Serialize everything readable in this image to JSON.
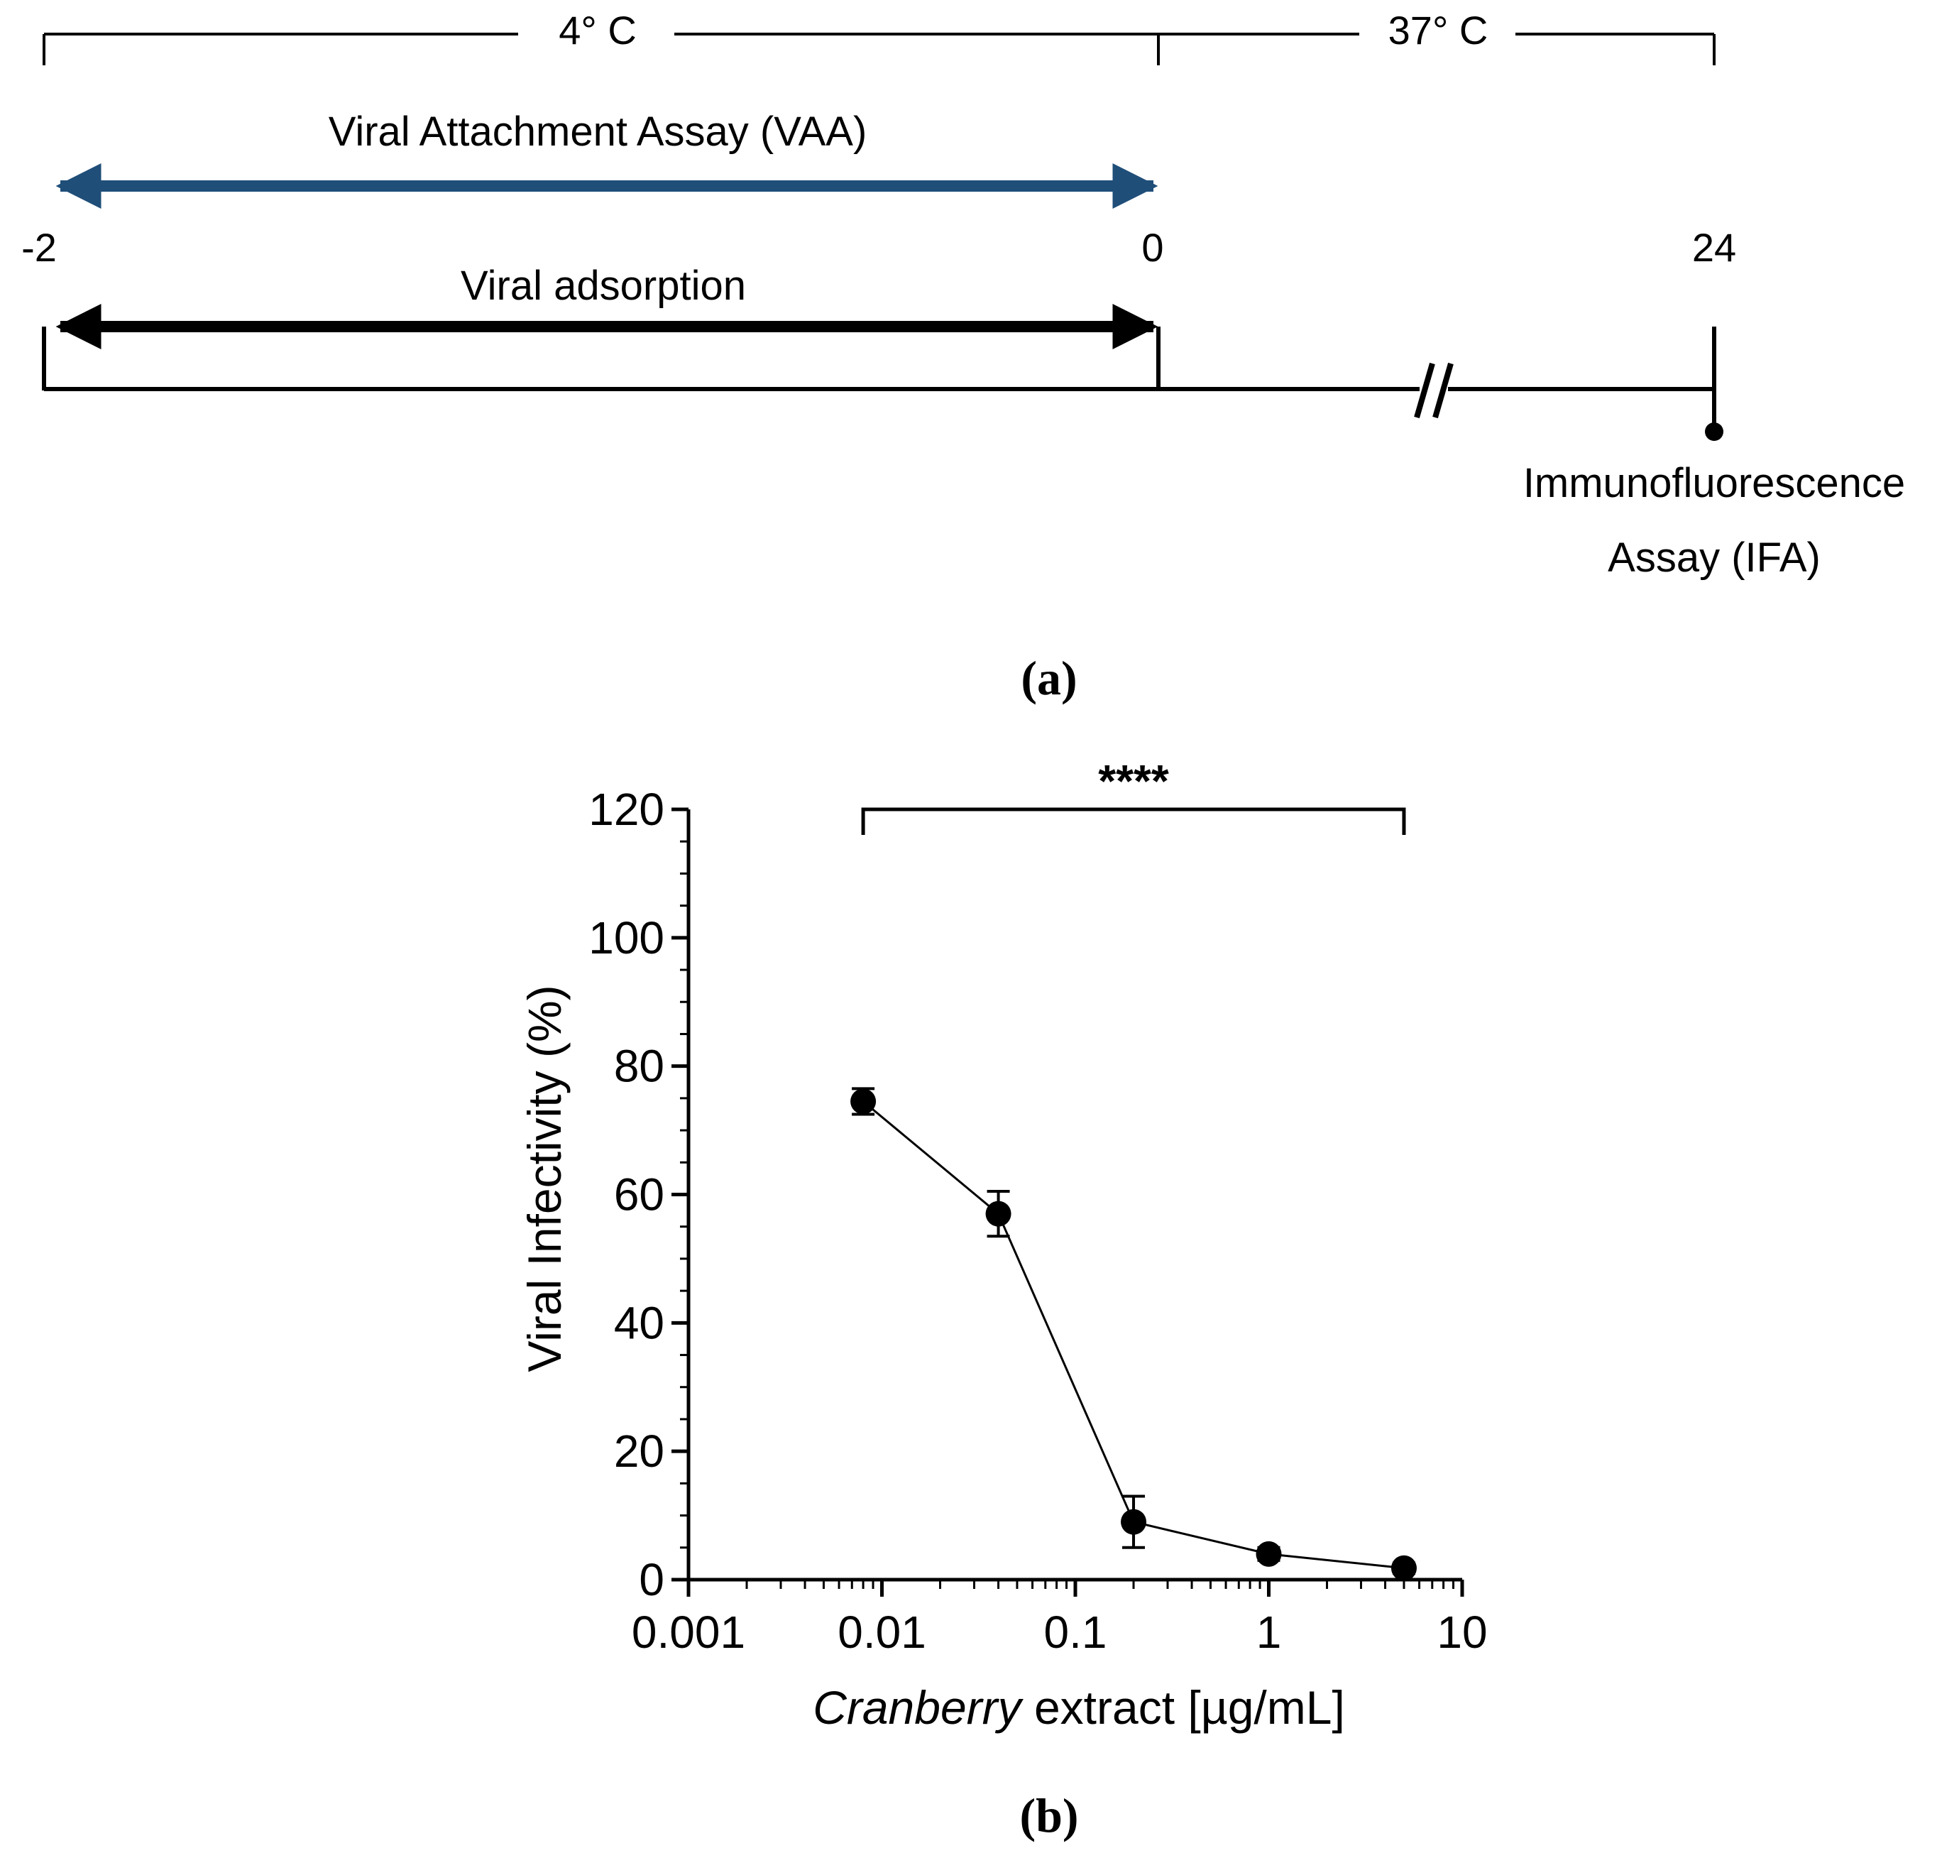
{
  "panel_a": {
    "temp_cold": "4° C",
    "temp_warm": "37° C",
    "vaa_label": "Viral Attachment Assay (VAA)",
    "time_start": "-2",
    "time_zero": "0",
    "time_end": "24",
    "adsorption_label": "Viral adsorption",
    "ifa_line1": "Immunofluorescence",
    "ifa_line2": "Assay (IFA)",
    "caption": "(a)",
    "colors": {
      "vaa_arrow": "#1f4e79",
      "adsorption_arrow": "#000000"
    }
  },
  "panel_b": {
    "caption": "(b)",
    "significance": "****",
    "xlabel_italic": "Cranberry",
    "xlabel_rest": " extract [µg/mL]"
  },
  "chart_data": {
    "type": "scatter",
    "title": "",
    "xlabel": "Cranberry extract [µg/mL]",
    "ylabel": "Viral Infectivity (%)",
    "xscale": "log",
    "xlim": [
      0.001,
      10
    ],
    "ylim": [
      0,
      120
    ],
    "x_ticks": [
      0.001,
      0.01,
      0.1,
      1,
      10
    ],
    "x_tick_labels": [
      "0.001",
      "0.01",
      "0.1",
      "1",
      "10"
    ],
    "y_ticks": [
      0,
      20,
      40,
      60,
      80,
      100,
      120
    ],
    "y_tick_labels": [
      "0",
      "20",
      "40",
      "60",
      "80",
      "100",
      "120"
    ],
    "series": [
      {
        "name": "Cranberry extract",
        "x": [
          0.008,
          0.04,
          0.2,
          1,
          5
        ],
        "y": [
          74.5,
          57,
          9,
          4,
          1.8
        ],
        "err": [
          2,
          3.5,
          4,
          1,
          0.8
        ],
        "connected": true
      }
    ],
    "significance_bracket": {
      "from": 0.008,
      "to": 5,
      "label": "****"
    }
  }
}
